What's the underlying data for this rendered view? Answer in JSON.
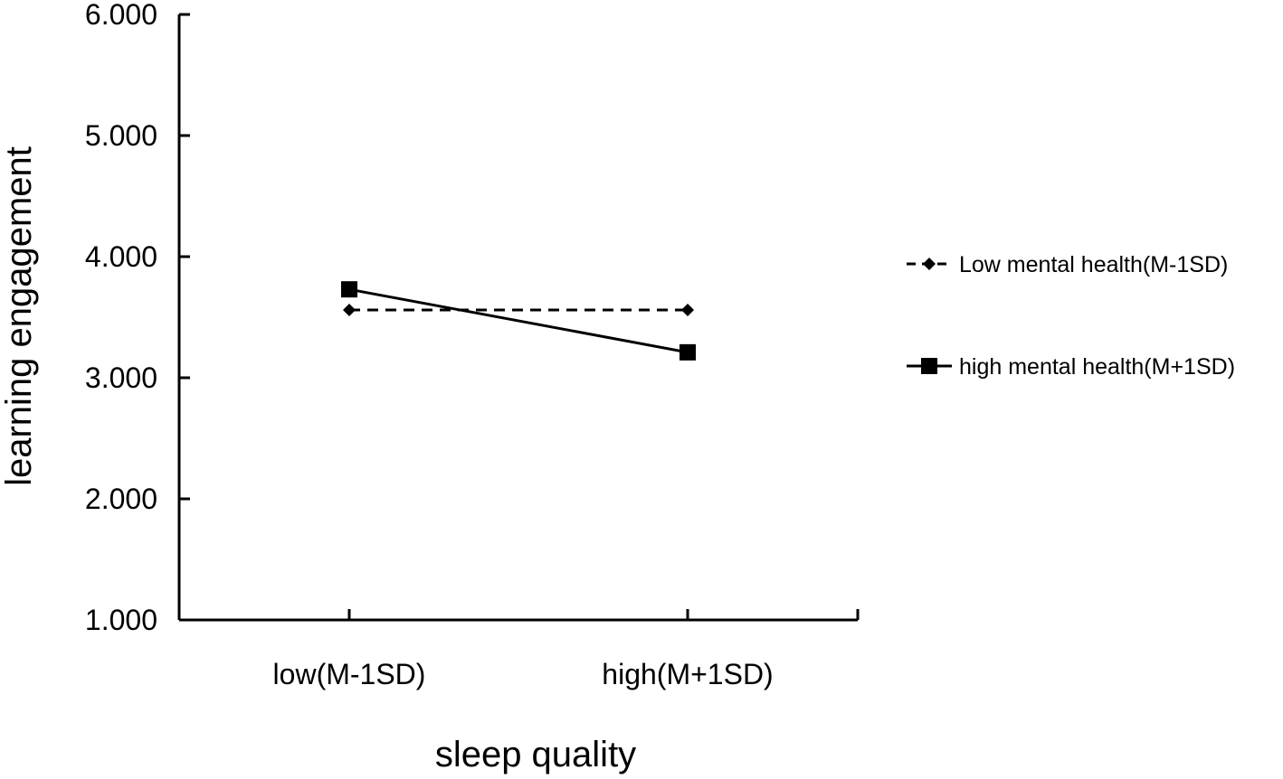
{
  "chart_data": {
    "type": "line",
    "title": "",
    "xlabel": "sleep quality",
    "ylabel": "learning engagement",
    "categories": [
      "low(M-1SD)",
      "high(M+1SD)"
    ],
    "ylim": [
      1.0,
      6.0
    ],
    "yticks": [
      "1.000",
      "2.000",
      "3.000",
      "4.000",
      "5.000",
      "6.000"
    ],
    "grid": false,
    "legend_position": "right",
    "series": [
      {
        "name": "Low mental health(M-1SD)",
        "values": [
          3.56,
          3.56
        ],
        "marker": "diamond",
        "line_style": "dashed",
        "color": "#000000"
      },
      {
        "name": "high mental health(M+1SD)",
        "values": [
          3.73,
          3.21
        ],
        "marker": "square",
        "line_style": "solid",
        "color": "#000000"
      }
    ]
  }
}
